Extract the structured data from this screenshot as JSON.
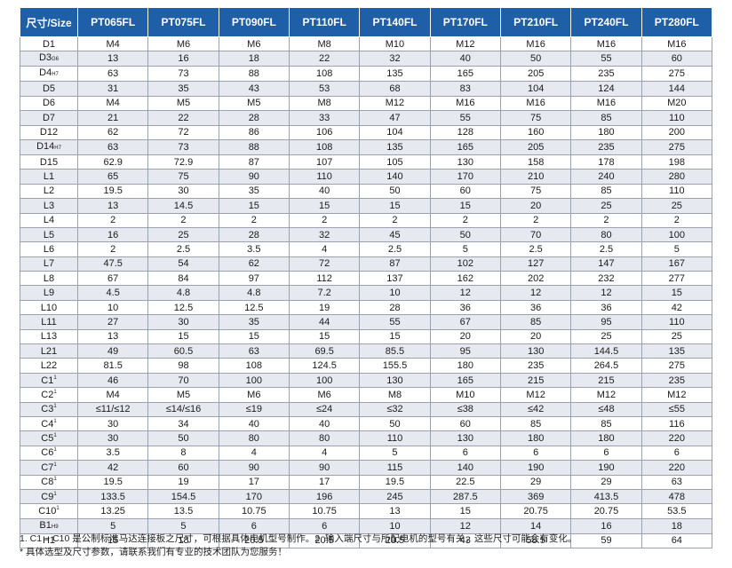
{
  "header": [
    "尺寸/Size",
    "PT065FL",
    "PT075FL",
    "PT090FL",
    "PT110FL",
    "PT140FL",
    "PT170FL",
    "PT210FL",
    "PT240FL",
    "PT280FL"
  ],
  "rows": [
    {
      "label": "D1",
      "suffix": "",
      "sup": "",
      "values": [
        "M4",
        "M6",
        "M6",
        "M8",
        "M10",
        "M12",
        "M16",
        "M16",
        "M16"
      ]
    },
    {
      "label": "D3",
      "suffix": "G6",
      "sup": "",
      "values": [
        "13",
        "16",
        "18",
        "22",
        "32",
        "40",
        "50",
        "55",
        "60"
      ]
    },
    {
      "label": "D4",
      "suffix": "H7",
      "sup": "",
      "values": [
        "63",
        "73",
        "88",
        "108",
        "135",
        "165",
        "205",
        "235",
        "275"
      ]
    },
    {
      "label": "D5",
      "suffix": "",
      "sup": "",
      "values": [
        "31",
        "35",
        "43",
        "53",
        "68",
        "83",
        "104",
        "124",
        "144"
      ]
    },
    {
      "label": "D6",
      "suffix": "",
      "sup": "",
      "values": [
        "M4",
        "M5",
        "M5",
        "M8",
        "M12",
        "M16",
        "M16",
        "M16",
        "M20"
      ]
    },
    {
      "label": "D7",
      "suffix": "",
      "sup": "",
      "values": [
        "21",
        "22",
        "28",
        "33",
        "47",
        "55",
        "75",
        "85",
        "110"
      ]
    },
    {
      "label": "D12",
      "suffix": "",
      "sup": "",
      "values": [
        "62",
        "72",
        "86",
        "106",
        "104",
        "128",
        "160",
        "180",
        "200"
      ]
    },
    {
      "label": "D14",
      "suffix": "H7",
      "sup": "",
      "values": [
        "63",
        "73",
        "88",
        "108",
        "135",
        "165",
        "205",
        "235",
        "275"
      ]
    },
    {
      "label": "D15",
      "suffix": "",
      "sup": "",
      "values": [
        "62.9",
        "72.9",
        "87",
        "107",
        "105",
        "130",
        "158",
        "178",
        "198"
      ]
    },
    {
      "label": "L1",
      "suffix": "",
      "sup": "",
      "values": [
        "65",
        "75",
        "90",
        "110",
        "140",
        "170",
        "210",
        "240",
        "280"
      ]
    },
    {
      "label": "L2",
      "suffix": "",
      "sup": "",
      "values": [
        "19.5",
        "30",
        "35",
        "40",
        "50",
        "60",
        "75",
        "85",
        "110"
      ]
    },
    {
      "label": "L3",
      "suffix": "",
      "sup": "",
      "values": [
        "13",
        "14.5",
        "15",
        "15",
        "15",
        "15",
        "20",
        "25",
        "25"
      ]
    },
    {
      "label": "L4",
      "suffix": "",
      "sup": "",
      "values": [
        "2",
        "2",
        "2",
        "2",
        "2",
        "2",
        "2",
        "2",
        "2"
      ]
    },
    {
      "label": "L5",
      "suffix": "",
      "sup": "",
      "values": [
        "16",
        "25",
        "28",
        "32",
        "45",
        "50",
        "70",
        "80",
        "100"
      ]
    },
    {
      "label": "L6",
      "suffix": "",
      "sup": "",
      "values": [
        "2",
        "2.5",
        "3.5",
        "4",
        "2.5",
        "5",
        "2.5",
        "2.5",
        "5"
      ]
    },
    {
      "label": "L7",
      "suffix": "",
      "sup": "",
      "values": [
        "47.5",
        "54",
        "62",
        "72",
        "87",
        "102",
        "127",
        "147",
        "167"
      ]
    },
    {
      "label": "L8",
      "suffix": "",
      "sup": "",
      "values": [
        "67",
        "84",
        "97",
        "112",
        "137",
        "162",
        "202",
        "232",
        "277"
      ]
    },
    {
      "label": "L9",
      "suffix": "",
      "sup": "",
      "values": [
        "4.5",
        "4.8",
        "4.8",
        "7.2",
        "10",
        "12",
        "12",
        "12",
        "15"
      ]
    },
    {
      "label": "L10",
      "suffix": "",
      "sup": "",
      "values": [
        "10",
        "12.5",
        "12.5",
        "19",
        "28",
        "36",
        "36",
        "36",
        "42"
      ]
    },
    {
      "label": "L11",
      "suffix": "",
      "sup": "",
      "values": [
        "27",
        "30",
        "35",
        "44",
        "55",
        "67",
        "85",
        "95",
        "110"
      ]
    },
    {
      "label": "L13",
      "suffix": "",
      "sup": "",
      "values": [
        "13",
        "15",
        "15",
        "15",
        "15",
        "20",
        "20",
        "25",
        "25"
      ]
    },
    {
      "label": "L21",
      "suffix": "",
      "sup": "",
      "values": [
        "49",
        "60.5",
        "63",
        "69.5",
        "85.5",
        "95",
        "130",
        "144.5",
        "135"
      ]
    },
    {
      "label": "L22",
      "suffix": "",
      "sup": "",
      "values": [
        "81.5",
        "98",
        "108",
        "124.5",
        "155.5",
        "180",
        "235",
        "264.5",
        "275"
      ]
    },
    {
      "label": "C1",
      "suffix": "",
      "sup": "1",
      "values": [
        "46",
        "70",
        "100",
        "100",
        "130",
        "165",
        "215",
        "215",
        "235"
      ]
    },
    {
      "label": "C2",
      "suffix": "",
      "sup": "1",
      "values": [
        "M4",
        "M5",
        "M6",
        "M6",
        "M8",
        "M10",
        "M12",
        "M12",
        "M12"
      ]
    },
    {
      "label": "C3",
      "suffix": "",
      "sup": "1",
      "values": [
        "≤11/≤12",
        "≤14/≤16",
        "≤19",
        "≤24",
        "≤32",
        "≤38",
        "≤42",
        "≤48",
        "≤55"
      ]
    },
    {
      "label": "C4",
      "suffix": "",
      "sup": "1",
      "values": [
        "30",
        "34",
        "40",
        "40",
        "50",
        "60",
        "85",
        "85",
        "116"
      ]
    },
    {
      "label": "C5",
      "suffix": "",
      "sup": "1",
      "values": [
        "30",
        "50",
        "80",
        "80",
        "110",
        "130",
        "180",
        "180",
        "220"
      ]
    },
    {
      "label": "C6",
      "suffix": "",
      "sup": "1",
      "values": [
        "3.5",
        "8",
        "4",
        "4",
        "5",
        "6",
        "6",
        "6",
        "6"
      ]
    },
    {
      "label": "C7",
      "suffix": "",
      "sup": "1",
      "values": [
        "42",
        "60",
        "90",
        "90",
        "115",
        "140",
        "190",
        "190",
        "220"
      ]
    },
    {
      "label": "C8",
      "suffix": "",
      "sup": "1",
      "values": [
        "19.5",
        "19",
        "17",
        "17",
        "19.5",
        "22.5",
        "29",
        "29",
        "63"
      ]
    },
    {
      "label": "C9",
      "suffix": "",
      "sup": "1",
      "values": [
        "133.5",
        "154.5",
        "170",
        "196",
        "245",
        "287.5",
        "369",
        "413.5",
        "478"
      ]
    },
    {
      "label": "C10",
      "suffix": "",
      "sup": "1",
      "values": [
        "13.25",
        "13.5",
        "10.75",
        "10.75",
        "13",
        "15",
        "20.75",
        "20.75",
        "53.5"
      ]
    },
    {
      "label": "B1",
      "suffix": "H9",
      "sup": "",
      "values": [
        "5",
        "5",
        "6",
        "6",
        "10",
        "12",
        "14",
        "16",
        "18"
      ]
    },
    {
      "label": "H1",
      "suffix": "",
      "sup": "",
      "values": [
        "15",
        "18",
        "20.5",
        "20.5",
        "20.5",
        "43",
        "58.5",
        "59",
        "64"
      ]
    }
  ],
  "notes": [
    "1. C1 ~ C10 是公制标准马达连接板之尺寸，可根据具体电机型号制作。2. 输入端尺寸与所配电机的型号有关，这些尺寸可能会有变化。",
    "* 具体选型及尺寸参数，请联系我们有专业的技术团队为您服务！"
  ],
  "colors": {
    "header_bg": "#1f5fa8",
    "header_text": "#ffffff",
    "alt_row": "#e6eaf0",
    "border": "#9aa3ad"
  }
}
